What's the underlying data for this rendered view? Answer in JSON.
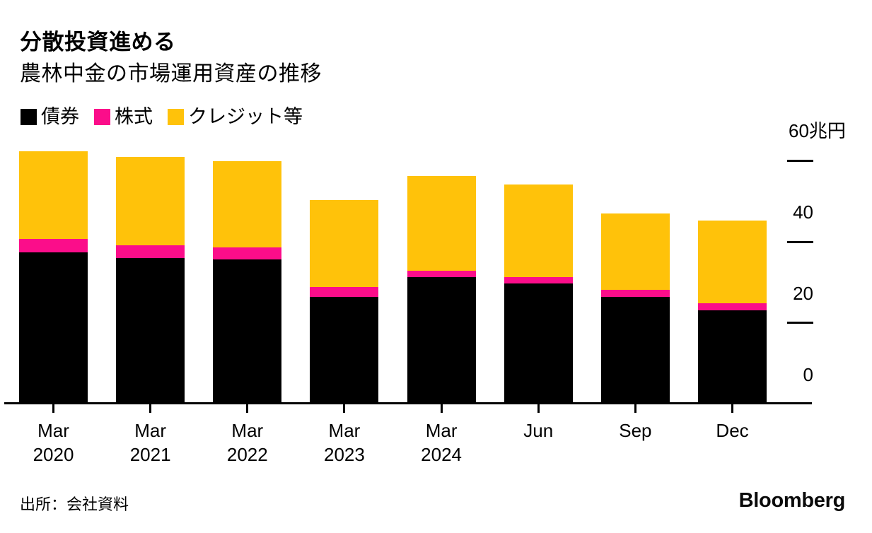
{
  "header": {
    "title": "分散投資進める",
    "subtitle": "農林中金の市場運用資産の推移"
  },
  "footer": {
    "source": "出所：会社資料",
    "brand": "Bloomberg"
  },
  "colors": {
    "bonds": "#000000",
    "equity": "#fb0d8a",
    "credit": "#ffc20a",
    "axis": "#000000",
    "background": "#ffffff"
  },
  "chart_data": {
    "type": "bar",
    "stacked": true,
    "unit": "兆円",
    "title": "分散投資進める",
    "subtitle": "農林中金の市場運用資産の推移",
    "categories": [
      "Mar 2020",
      "Mar 2021",
      "Mar 2022",
      "Mar 2023",
      "Mar 2024",
      "Jun 2024",
      "Sep 2024",
      "Dec 2024"
    ],
    "category_labels": [
      [
        "Mar",
        "2020"
      ],
      [
        "Mar",
        "2021"
      ],
      [
        "Mar",
        "2022"
      ],
      [
        "Mar",
        "2023"
      ],
      [
        "Mar",
        "2024"
      ],
      [
        "Jun"
      ],
      [
        "Sep"
      ],
      [
        "Dec"
      ]
    ],
    "series": [
      {
        "name": "債券",
        "key": "bonds",
        "color": "#000000",
        "values": [
          37.3,
          35.9,
          35.6,
          26.3,
          31.2,
          29.6,
          26.3,
          23.0
        ]
      },
      {
        "name": "株式",
        "key": "equity",
        "color": "#fb0d8a",
        "values": [
          3.3,
          3.2,
          2.9,
          2.5,
          1.6,
          1.6,
          1.8,
          1.8
        ]
      },
      {
        "name": "クレジット等",
        "key": "credit",
        "color": "#ffc20a",
        "values": [
          21.6,
          21.8,
          21.3,
          21.4,
          23.3,
          22.9,
          18.8,
          20.4
        ]
      }
    ],
    "totals": [
      62.2,
      60.9,
      59.8,
      50.2,
      56.1,
      54.1,
      46.9,
      45.2
    ],
    "y_axis": {
      "position": "right",
      "ticks": [
        0,
        20,
        40,
        60
      ],
      "top_label": "60兆円",
      "ylim": [
        0,
        63
      ],
      "grid": false
    },
    "legend_position": "top-left"
  }
}
